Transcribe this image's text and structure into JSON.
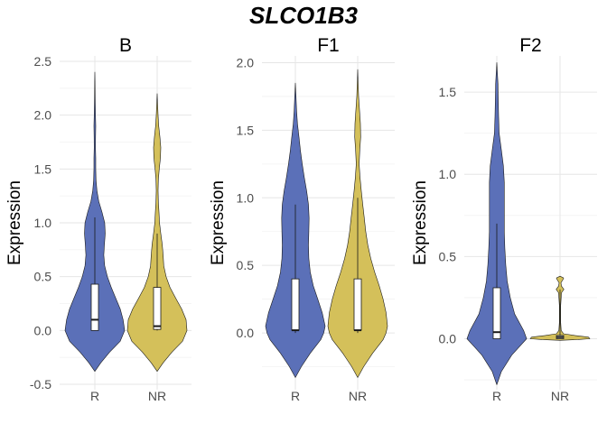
{
  "chart_data": {
    "type": "violin",
    "title": "SLCO1B3",
    "ylabel": "Expression",
    "categories": [
      "R",
      "NR"
    ],
    "colors": {
      "R": "#5b70b8",
      "NR": "#d4c05a"
    },
    "grid": true,
    "legend": "none",
    "panels": [
      {
        "name": "B",
        "ylim": [
          -0.55,
          2.55
        ],
        "yticks": [
          -0.5,
          0.0,
          0.5,
          1.0,
          1.5,
          2.0,
          2.5
        ],
        "ytick_labels": [
          "-0.5",
          "0.0",
          "0.5",
          "1.0",
          "1.5",
          "2.0",
          "2.5"
        ],
        "groups": [
          {
            "name": "R",
            "range": [
              -0.38,
              2.4
            ],
            "box": {
              "q1": 0.0,
              "median": 0.1,
              "q3": 0.43
            },
            "whiskers": [
              0.0,
              1.05
            ],
            "density": [
              [
                -0.38,
                0.0
              ],
              [
                -0.3,
                0.2
              ],
              [
                -0.2,
                0.5
              ],
              [
                -0.1,
                0.85
              ],
              [
                0.0,
                1.0
              ],
              [
                0.1,
                0.95
              ],
              [
                0.2,
                0.85
              ],
              [
                0.3,
                0.7
              ],
              [
                0.4,
                0.55
              ],
              [
                0.5,
                0.42
              ],
              [
                0.6,
                0.33
              ],
              [
                0.7,
                0.3
              ],
              [
                0.8,
                0.32
              ],
              [
                0.9,
                0.35
              ],
              [
                1.0,
                0.33
              ],
              [
                1.1,
                0.24
              ],
              [
                1.2,
                0.13
              ],
              [
                1.3,
                0.07
              ],
              [
                1.4,
                0.04
              ],
              [
                1.5,
                0.03
              ],
              [
                1.6,
                0.03
              ],
              [
                1.7,
                0.02
              ],
              [
                1.8,
                0.025
              ],
              [
                1.9,
                0.03
              ],
              [
                2.0,
                0.02
              ],
              [
                2.1,
                0.015
              ],
              [
                2.2,
                0.01
              ],
              [
                2.3,
                0.006
              ],
              [
                2.4,
                0.0
              ]
            ]
          },
          {
            "name": "NR",
            "range": [
              -0.38,
              2.2
            ],
            "box": {
              "q1": 0.01,
              "median": 0.04,
              "q3": 0.4
            },
            "whiskers": [
              0.0,
              0.9
            ],
            "density": [
              [
                -0.38,
                0.0
              ],
              [
                -0.3,
                0.2
              ],
              [
                -0.2,
                0.5
              ],
              [
                -0.1,
                0.85
              ],
              [
                0.0,
                1.0
              ],
              [
                0.1,
                0.97
              ],
              [
                0.2,
                0.82
              ],
              [
                0.3,
                0.62
              ],
              [
                0.4,
                0.43
              ],
              [
                0.5,
                0.3
              ],
              [
                0.6,
                0.22
              ],
              [
                0.7,
                0.2
              ],
              [
                0.8,
                0.17
              ],
              [
                0.9,
                0.12
              ],
              [
                1.0,
                0.08
              ],
              [
                1.1,
                0.06
              ],
              [
                1.2,
                0.04
              ],
              [
                1.3,
                0.03
              ],
              [
                1.4,
                0.04
              ],
              [
                1.5,
                0.07
              ],
              [
                1.6,
                0.11
              ],
              [
                1.7,
                0.12
              ],
              [
                1.8,
                0.09
              ],
              [
                1.9,
                0.05
              ],
              [
                2.0,
                0.03
              ],
              [
                2.1,
                0.015
              ],
              [
                2.2,
                0.0
              ]
            ]
          }
        ]
      },
      {
        "name": "F1",
        "ylim": [
          -0.42,
          2.05
        ],
        "yticks": [
          0.0,
          0.5,
          1.0,
          1.5,
          2.0
        ],
        "ytick_labels": [
          "0.0",
          "0.5",
          "1.0",
          "1.5",
          "2.0"
        ],
        "groups": [
          {
            "name": "R",
            "range": [
              -0.33,
              1.85
            ],
            "box": {
              "q1": 0.02,
              "median": 0.02,
              "q3": 0.4
            },
            "whiskers": [
              0.0,
              0.95
            ],
            "density": [
              [
                -0.33,
                0.0
              ],
              [
                -0.25,
                0.2
              ],
              [
                -0.15,
                0.5
              ],
              [
                -0.05,
                0.85
              ],
              [
                0.0,
                0.95
              ],
              [
                0.05,
                1.0
              ],
              [
                0.15,
                0.9
              ],
              [
                0.25,
                0.75
              ],
              [
                0.35,
                0.6
              ],
              [
                0.45,
                0.5
              ],
              [
                0.55,
                0.45
              ],
              [
                0.65,
                0.44
              ],
              [
                0.75,
                0.45
              ],
              [
                0.85,
                0.46
              ],
              [
                0.95,
                0.44
              ],
              [
                1.05,
                0.38
              ],
              [
                1.15,
                0.3
              ],
              [
                1.25,
                0.23
              ],
              [
                1.35,
                0.17
              ],
              [
                1.45,
                0.12
              ],
              [
                1.55,
                0.07
              ],
              [
                1.65,
                0.04
              ],
              [
                1.75,
                0.02
              ],
              [
                1.85,
                0.0
              ]
            ]
          },
          {
            "name": "NR",
            "range": [
              -0.33,
              1.95
            ],
            "box": {
              "q1": 0.02,
              "median": 0.02,
              "q3": 0.4
            },
            "whiskers": [
              0.0,
              1.0
            ],
            "density": [
              [
                -0.33,
                0.0
              ],
              [
                -0.25,
                0.2
              ],
              [
                -0.15,
                0.5
              ],
              [
                -0.05,
                0.85
              ],
              [
                0.0,
                0.95
              ],
              [
                0.05,
                1.0
              ],
              [
                0.15,
                0.95
              ],
              [
                0.25,
                0.85
              ],
              [
                0.35,
                0.72
              ],
              [
                0.45,
                0.57
              ],
              [
                0.55,
                0.44
              ],
              [
                0.65,
                0.34
              ],
              [
                0.75,
                0.27
              ],
              [
                0.85,
                0.22
              ],
              [
                0.95,
                0.17
              ],
              [
                1.05,
                0.12
              ],
              [
                1.15,
                0.08
              ],
              [
                1.25,
                0.05
              ],
              [
                1.35,
                0.07
              ],
              [
                1.45,
                0.1
              ],
              [
                1.55,
                0.09
              ],
              [
                1.65,
                0.06
              ],
              [
                1.75,
                0.03
              ],
              [
                1.85,
                0.015
              ],
              [
                1.95,
                0.0
              ]
            ]
          }
        ]
      },
      {
        "name": "F2",
        "ylim": [
          -0.31,
          1.72
        ],
        "yticks": [
          0.0,
          0.5,
          1.0,
          1.5
        ],
        "ytick_labels": [
          "0.0",
          "0.5",
          "1.0",
          "1.5"
        ],
        "groups": [
          {
            "name": "R",
            "range": [
              -0.28,
              1.68
            ],
            "box": {
              "q1": 0.0,
              "median": 0.04,
              "q3": 0.31
            },
            "whiskers": [
              0.0,
              0.7
            ],
            "density": [
              [
                -0.28,
                0.0
              ],
              [
                -0.2,
                0.15
              ],
              [
                -0.1,
                0.5
              ],
              [
                -0.05,
                0.75
              ],
              [
                0.0,
                1.0
              ],
              [
                0.05,
                0.9
              ],
              [
                0.15,
                0.6
              ],
              [
                0.25,
                0.45
              ],
              [
                0.35,
                0.35
              ],
              [
                0.45,
                0.3
              ],
              [
                0.55,
                0.27
              ],
              [
                0.65,
                0.25
              ],
              [
                0.75,
                0.25
              ],
              [
                0.85,
                0.25
              ],
              [
                0.95,
                0.25
              ],
              [
                1.05,
                0.22
              ],
              [
                1.15,
                0.15
              ],
              [
                1.25,
                0.08
              ],
              [
                1.35,
                0.06
              ],
              [
                1.45,
                0.05
              ],
              [
                1.55,
                0.04
              ],
              [
                1.68,
                0.0
              ]
            ]
          },
          {
            "name": "NR",
            "range": [
              -0.01,
              0.38
            ],
            "box": {
              "q1": 0.0,
              "median": 0.01,
              "q3": 0.02
            },
            "whiskers": [
              0.0,
              0.3
            ],
            "density": [
              [
                -0.01,
                0.0
              ],
              [
                -0.005,
                0.6
              ],
              [
                0.0,
                1.0
              ],
              [
                0.01,
                0.95
              ],
              [
                0.02,
                0.5
              ],
              [
                0.03,
                0.12
              ],
              [
                0.05,
                0.04
              ],
              [
                0.1,
                0.02
              ],
              [
                0.2,
                0.02
              ],
              [
                0.28,
                0.05
              ],
              [
                0.3,
                0.13
              ],
              [
                0.32,
                0.05
              ],
              [
                0.34,
                0.03
              ],
              [
                0.36,
                0.1
              ],
              [
                0.37,
                0.12
              ],
              [
                0.38,
                0.0
              ]
            ]
          }
        ]
      }
    ]
  }
}
